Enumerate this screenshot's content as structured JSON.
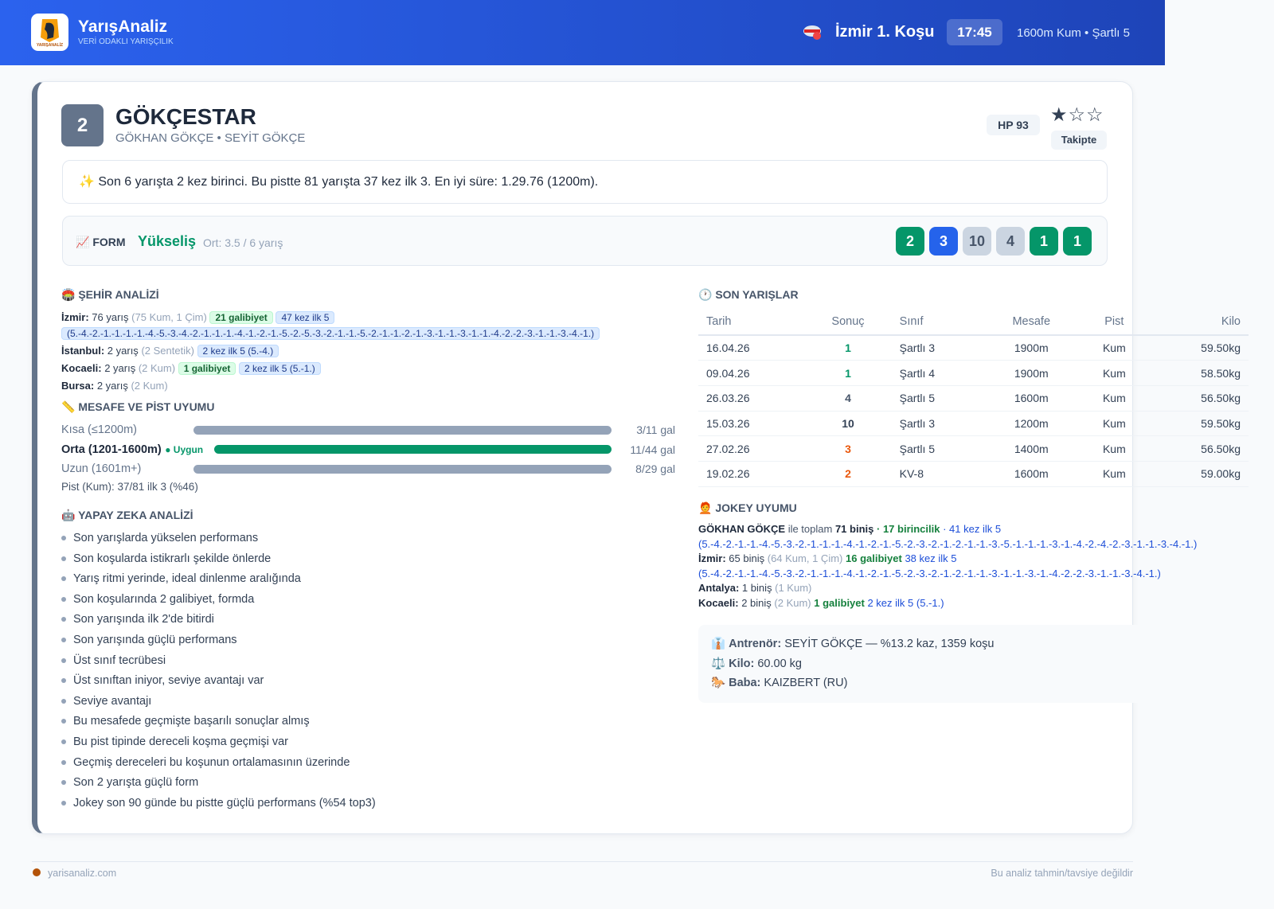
{
  "header": {
    "brand": "YarışAnaliz",
    "tagline": "VERİ ODAKLI YARIŞÇILIK",
    "logo_text": "YARIŞANALİZ",
    "race": "İzmir 1. Koşu",
    "time": "17:45",
    "info": "1600m Kum • Şartlı 5"
  },
  "horse": {
    "number": "2",
    "name": "GÖKÇESTAR",
    "connections": "GÖKHAN GÖKÇE • SEYİT GÖKÇE",
    "hp": "HP 93",
    "stars": "★☆☆",
    "follow": "Takipte"
  },
  "summary": "✨ Son 6 yarışta 2 kez birinci. Bu pistte 81 yarışta 37 kez ilk 3. En iyi süre: 1.29.76 (1200m).",
  "form": {
    "label": "📈 FORM",
    "trend": "Yükseliş",
    "avg": "Ort: 3.5 / 6 yarış",
    "results": [
      {
        "value": "2",
        "color": "#059669"
      },
      {
        "value": "3",
        "color": "#2563eb"
      },
      {
        "value": "10",
        "color": "#cbd5e1"
      },
      {
        "value": "4",
        "color": "#cbd5e1"
      },
      {
        "value": "1",
        "color": "#059669"
      },
      {
        "value": "1",
        "color": "#059669"
      }
    ]
  },
  "city_analysis": {
    "title": "🏟️ ŞEHİR ANALİZİ",
    "lines": [
      {
        "city": "İzmir:",
        "races": "76 yarış",
        "detail": "(75 Kum, 1 Çim)",
        "wins": "21 galibiyet",
        "top5": "47 kez ilk 5 (5.-4.-2.-1.-1.-1.-1.-4.-5.-3.-4.-2.-1.-1.-1.-4.-1.-2.-1.-5.-2.-5.-3.-2.-1.-1.-5.-2.-1.-1.-2.-1.-3.-1.-1.-3.-1.-1.-4.-2.-2.-3.-1.-1.-3.-4.-1.)"
      },
      {
        "city": "İstanbul:",
        "races": "2 yarış",
        "detail": "(2 Sentetik)",
        "top5": "2 kez ilk 5 (5.-4.)"
      },
      {
        "city": "Kocaeli:",
        "races": "2 yarış",
        "detail": "(2 Kum)",
        "wins": "1 galibiyet",
        "top5": "2 kez ilk 5 (5.-1.)"
      },
      {
        "city": "Bursa:",
        "races": "2 yarış",
        "detail": "(2 Kum)"
      }
    ]
  },
  "distance": {
    "title": "📏 MESAFE VE PİST UYUMU",
    "rows": [
      {
        "label": "Kısa (≤1200m)",
        "stat": "3/11 gal",
        "color": "#94a3b8"
      },
      {
        "label": "Orta (1201-1600m)",
        "badge": "● Uygun",
        "stat": "11/44 gal",
        "color": "#059669"
      },
      {
        "label": "Uzun (1601m+)",
        "stat": "8/29 gal",
        "color": "#94a3b8"
      }
    ],
    "track": "Pist (Kum): 37/81 ilk 3 (%46)"
  },
  "ai": {
    "title": "🤖 YAPAY ZEKA ANALİZİ",
    "items": [
      "Son yarışlarda yükselen performans",
      "Son koşularda istikrarlı şekilde önlerde",
      "Yarış ritmi yerinde, ideal dinlenme aralığında",
      "Son koşularında 2 galibiyet, formda",
      "Son yarışında ilk 2'de bitirdi",
      "Son yarışında güçlü performans",
      "Üst sınıf tecrübesi",
      "Üst sınıftan iniyor, seviye avantajı var",
      "Seviye avantajı",
      "Bu mesafede geçmişte başarılı sonuçlar almış",
      "Bu pist tipinde dereceli koşma geçmişi var",
      "Geçmiş dereceleri bu koşunun ortalamasının üzerinde",
      "Son 2 yarışta güçlü form",
      "Jokey son 90 günde bu pistte güçlü performans (%54 top3)"
    ]
  },
  "recent": {
    "title": "🕐 SON YARIŞLAR",
    "columns": [
      "Tarih",
      "Sonuç",
      "Sınıf",
      "Mesafe",
      "Pist",
      "Kilo"
    ],
    "rows": [
      [
        "16.04.26",
        "1",
        "Şartlı 3",
        "1900m",
        "Kum",
        "59.50kg"
      ],
      [
        "09.04.26",
        "1",
        "Şartlı 4",
        "1900m",
        "Kum",
        "58.50kg"
      ],
      [
        "26.03.26",
        "4",
        "Şartlı 5",
        "1600m",
        "Kum",
        "56.50kg"
      ],
      [
        "15.03.26",
        "10",
        "Şartlı 3",
        "1200m",
        "Kum",
        "59.50kg"
      ],
      [
        "27.02.26",
        "3",
        "Şartlı 5",
        "1400m",
        "Kum",
        "56.50kg"
      ],
      [
        "19.02.26",
        "2",
        "KV-8",
        "1600m",
        "Kum",
        "59.00kg"
      ]
    ],
    "result_colors": [
      "#059669",
      "#059669",
      "#475569",
      "#334155",
      "#ea580c",
      "#ea580c"
    ]
  },
  "jockey": {
    "title": "🧑‍🦰 JOKEY UYUMU",
    "overall": {
      "name": "GÖKHAN GÖKÇE",
      "text": "ile toplam",
      "rides": "71 biniş",
      "wins": "· 17 birincilik",
      "top5": "· 41 kez ilk 5 (5.-4.-2.-1.-1.-4.-5.-3.-2.-1.-1.-1.-4.-1.-2.-1.-5.-2.-3.-2.-1.-2.-1.-1.-3.-5.-1.-1.-1.-3.-1.-4.-2.-4.-2.-3.-1.-1.-3.-4.-1.)"
    },
    "cities": [
      {
        "city": "İzmir:",
        "rides": "65 biniş",
        "detail": "(64 Kum, 1 Çim)",
        "wins": "16 galibiyet",
        "top5": "38 kez ilk 5 (5.-4.-2.-1.-1.-4.-5.-3.-2.-1.-1.-1.-4.-1.-2.-1.-5.-2.-3.-2.-1.-2.-1.-1.-3.-1.-1.-3.-1.-4.-2.-2.-3.-1.-1.-3.-4.-1.)"
      },
      {
        "city": "Antalya:",
        "rides": "1 biniş",
        "detail": "(1 Kum)"
      },
      {
        "city": "Kocaeli:",
        "rides": "2 biniş",
        "detail": "(2 Kum)",
        "wins": "1 galibiyet",
        "top5": "2 kez ilk 5 (5.-1.)"
      }
    ]
  },
  "info": [
    {
      "icon": "👔",
      "label": "Antrenör:",
      "value": "SEYİT GÖKÇE — %13.2 kaz, 1359 koşu"
    },
    {
      "icon": "⚖️",
      "label": "Kilo:",
      "value": "60.00 kg"
    },
    {
      "icon": "🐎",
      "label": "Baba:",
      "value": "KAIZBERT (RU)"
    }
  ],
  "footer": {
    "site": "yarisanaliz.com",
    "disclaimer": "Bu analiz tahmin/tavsiye değildir"
  }
}
